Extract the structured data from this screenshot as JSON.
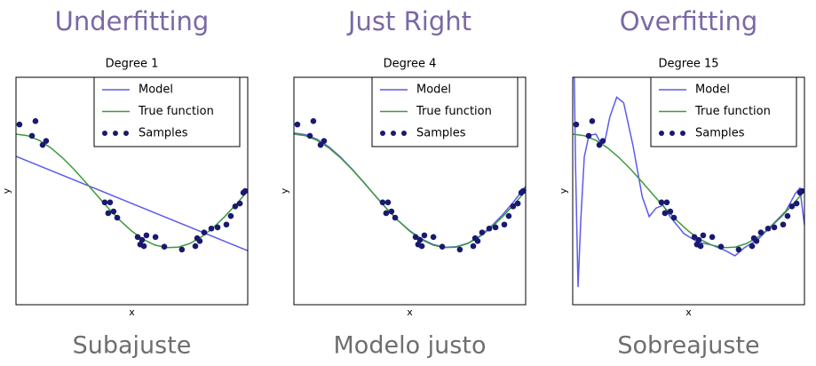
{
  "chart_data": [
    {
      "type": "line",
      "header": "Underfitting",
      "caption": "Subajuste",
      "title": "Degree 1",
      "xlabel": "x",
      "ylabel": "y",
      "xlim": [
        0,
        1
      ],
      "ylim": [
        -2,
        2
      ],
      "legend": "upper right",
      "series": [
        {
          "name": "Model",
          "color": "#5b5bec",
          "type": "line",
          "x": [
            0,
            1
          ],
          "values": [
            0.61,
            -1.05
          ]
        },
        {
          "name": "True function",
          "color": "#3c9a3c",
          "type": "line",
          "x": [
            0,
            0.05,
            0.1,
            0.15,
            0.2,
            0.25,
            0.3,
            0.35,
            0.4,
            0.45,
            0.5,
            0.55,
            0.6,
            0.65,
            0.7,
            0.75,
            0.8,
            0.85,
            0.9,
            0.95,
            1
          ],
          "values": [
            1,
            0.9724,
            0.891,
            0.7604,
            0.5878,
            0.3827,
            0.1564,
            -0.0785,
            -0.309,
            -0.5225,
            -0.7071,
            -0.8526,
            -0.9511,
            -0.9969,
            -0.9877,
            -0.9239,
            -0.809,
            -0.6494,
            -0.454,
            -0.2334,
            0
          ]
        },
        {
          "name": "Samples",
          "color": "#191970",
          "type": "scatter",
          "x": [
            0.015,
            0.069,
            0.084,
            0.115,
            0.13,
            0.383,
            0.398,
            0.406,
            0.421,
            0.437,
            0.525,
            0.536,
            0.544,
            0.552,
            0.563,
            0.602,
            0.64,
            0.716,
            0.774,
            0.782,
            0.793,
            0.812,
            0.843,
            0.87,
            0.908,
            0.927,
            0.946,
            0.966,
            0.981,
            0.989
          ],
          "values": [
            1.17,
            0.97,
            1.23,
            0.81,
            0.88,
            -0.2,
            -0.39,
            -0.2,
            -0.36,
            -0.47,
            -0.81,
            -0.94,
            -0.86,
            -0.97,
            -0.78,
            -0.81,
            -0.98,
            -1.03,
            -0.97,
            -0.83,
            -0.88,
            -0.73,
            -0.66,
            -0.64,
            -0.59,
            -0.44,
            -0.27,
            -0.22,
            -0.03,
            0
          ]
        }
      ]
    },
    {
      "type": "line",
      "header": "Just Right",
      "caption": "Modelo justo",
      "title": "Degree 4",
      "xlabel": "x",
      "ylabel": "y",
      "xlim": [
        0,
        1
      ],
      "ylim": [
        -2,
        2
      ],
      "legend": "upper right",
      "series": [
        {
          "name": "Model",
          "color": "#5b5bec",
          "type": "line",
          "x": [
            0,
            0.05,
            0.1,
            0.15,
            0.2,
            0.25,
            0.3,
            0.35,
            0.4,
            0.45,
            0.5,
            0.55,
            0.6,
            0.65,
            0.7,
            0.75,
            0.8,
            0.85,
            0.9,
            0.95,
            1
          ],
          "values": [
            1.02,
            0.99,
            0.91,
            0.78,
            0.6,
            0.39,
            0.16,
            -0.08,
            -0.31,
            -0.52,
            -0.7,
            -0.84,
            -0.94,
            -0.99,
            -0.98,
            -0.92,
            -0.8,
            -0.63,
            -0.42,
            -0.18,
            0.08
          ]
        },
        {
          "name": "True function",
          "color": "#3c9a3c",
          "type": "line",
          "x": [
            0,
            0.05,
            0.1,
            0.15,
            0.2,
            0.25,
            0.3,
            0.35,
            0.4,
            0.45,
            0.5,
            0.55,
            0.6,
            0.65,
            0.7,
            0.75,
            0.8,
            0.85,
            0.9,
            0.95,
            1
          ],
          "values": [
            1,
            0.9724,
            0.891,
            0.7604,
            0.5878,
            0.3827,
            0.1564,
            -0.0785,
            -0.309,
            -0.5225,
            -0.7071,
            -0.8526,
            -0.9511,
            -0.9969,
            -0.9877,
            -0.9239,
            -0.809,
            -0.6494,
            -0.454,
            -0.2334,
            0
          ]
        },
        {
          "name": "Samples",
          "color": "#191970",
          "type": "scatter",
          "x": [
            0.015,
            0.069,
            0.084,
            0.115,
            0.13,
            0.383,
            0.398,
            0.406,
            0.421,
            0.437,
            0.525,
            0.536,
            0.544,
            0.552,
            0.563,
            0.602,
            0.64,
            0.716,
            0.774,
            0.782,
            0.793,
            0.812,
            0.843,
            0.87,
            0.908,
            0.927,
            0.946,
            0.966,
            0.981,
            0.989
          ],
          "values": [
            1.17,
            0.97,
            1.23,
            0.81,
            0.88,
            -0.2,
            -0.39,
            -0.2,
            -0.36,
            -0.47,
            -0.81,
            -0.94,
            -0.86,
            -0.97,
            -0.78,
            -0.81,
            -0.98,
            -1.03,
            -0.97,
            -0.83,
            -0.88,
            -0.73,
            -0.66,
            -0.64,
            -0.59,
            -0.44,
            -0.27,
            -0.22,
            -0.03,
            0
          ]
        }
      ]
    },
    {
      "type": "line",
      "header": "Overfitting",
      "caption": "Sobreajuste",
      "title": "Degree 15",
      "xlabel": "x",
      "ylabel": "y",
      "xlim": [
        0,
        1
      ],
      "ylim": [
        -2,
        2
      ],
      "legend": "upper right",
      "series": [
        {
          "name": "Model",
          "color": "#5b5bec",
          "type": "line",
          "x": [
            0,
            0.012,
            0.023,
            0.035,
            0.05,
            0.07,
            0.1,
            0.12,
            0.14,
            0.16,
            0.19,
            0.22,
            0.26,
            0.3,
            0.33,
            0.36,
            0.39,
            0.42,
            0.48,
            0.54,
            0.6,
            0.66,
            0.7,
            0.74,
            0.8,
            0.86,
            0.92,
            0.96,
            0.98,
            1
          ],
          "values": [
            4,
            0.5,
            -1.69,
            -0.5,
            0.6,
            0.98,
            1.0,
            0.85,
            0.9,
            1.3,
            1.65,
            1.55,
            0.8,
            -0.1,
            -0.45,
            -0.3,
            -0.25,
            -0.45,
            -0.75,
            -0.9,
            -0.95,
            -1.05,
            -1.14,
            -1.0,
            -0.85,
            -0.6,
            -0.35,
            -0.05,
            0.05,
            -0.6
          ]
        },
        {
          "name": "True function",
          "color": "#3c9a3c",
          "type": "line",
          "x": [
            0,
            0.05,
            0.1,
            0.15,
            0.2,
            0.25,
            0.3,
            0.35,
            0.4,
            0.45,
            0.5,
            0.55,
            0.6,
            0.65,
            0.7,
            0.75,
            0.8,
            0.85,
            0.9,
            0.95,
            1
          ],
          "values": [
            1,
            0.9724,
            0.891,
            0.7604,
            0.5878,
            0.3827,
            0.1564,
            -0.0785,
            -0.309,
            -0.5225,
            -0.7071,
            -0.8526,
            -0.9511,
            -0.9969,
            -0.9877,
            -0.9239,
            -0.809,
            -0.6494,
            -0.454,
            -0.2334,
            0
          ]
        },
        {
          "name": "Samples",
          "color": "#191970",
          "type": "scatter",
          "x": [
            0.015,
            0.069,
            0.084,
            0.115,
            0.13,
            0.383,
            0.398,
            0.406,
            0.421,
            0.437,
            0.525,
            0.536,
            0.544,
            0.552,
            0.563,
            0.602,
            0.64,
            0.716,
            0.774,
            0.782,
            0.793,
            0.812,
            0.843,
            0.87,
            0.908,
            0.927,
            0.946,
            0.966,
            0.981,
            0.989
          ],
          "values": [
            1.17,
            0.97,
            1.23,
            0.81,
            0.88,
            -0.2,
            -0.39,
            -0.2,
            -0.36,
            -0.47,
            -0.81,
            -0.94,
            -0.86,
            -0.97,
            -0.78,
            -0.81,
            -0.98,
            -1.03,
            -0.97,
            -0.83,
            -0.88,
            -0.73,
            -0.66,
            -0.64,
            -0.59,
            -0.44,
            -0.27,
            -0.22,
            -0.03,
            0
          ]
        }
      ]
    }
  ]
}
